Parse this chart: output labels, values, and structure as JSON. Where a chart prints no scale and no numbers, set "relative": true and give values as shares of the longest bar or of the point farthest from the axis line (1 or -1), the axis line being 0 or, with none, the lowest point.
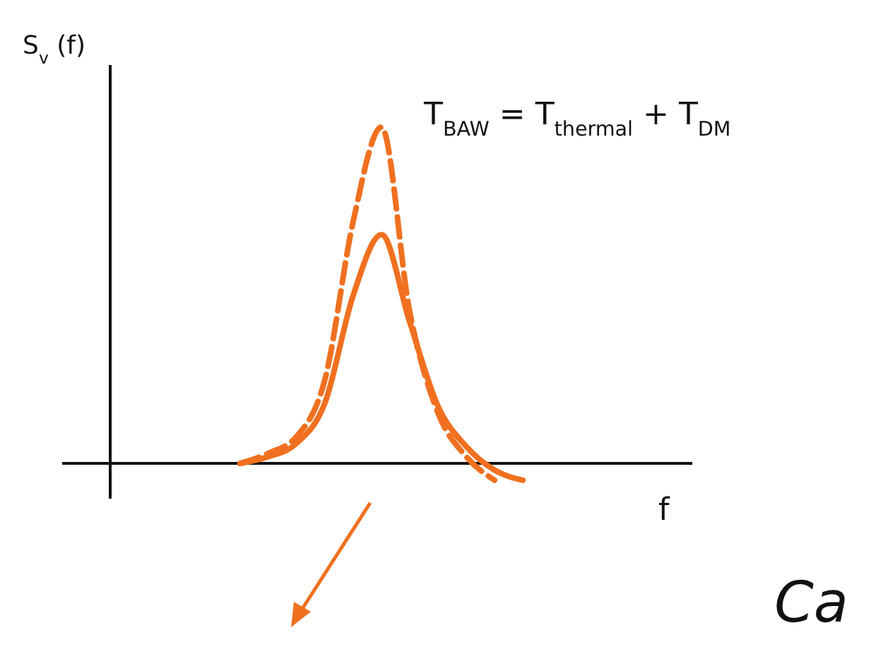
{
  "chart_data": {
    "type": "line",
    "relative": true,
    "ylabel": "S$_{v}$(f)",
    "xlabel": "f",
    "annotations": [
      "T$_{BAW}$ = T$_{thermal}$ + T$_{DM}$",
      "Ca"
    ],
    "categories": [
      null,
      null,
      null,
      null,
      null,
      null,
      null,
      null,
      null,
      null,
      null,
      null,
      null,
      null,
      null,
      null,
      null,
      null,
      null,
      null,
      null,
      null,
      null
    ],
    "series": [
      {
        "color": "#f07020",
        "line_style": "solid",
        "values": [
          null,
          null,
          null,
          null,
          null,
          null,
          0,
          0.02,
          0.06,
          0.18,
          0.5,
          0.68,
          0.42,
          0.17,
          0.05,
          -0.02,
          -0.05,
          null,
          null,
          null,
          null,
          null,
          null
        ]
      },
      {
        "color": "#f07020",
        "line_style": "dashed",
        "values": [
          null,
          null,
          null,
          null,
          null,
          null,
          0,
          0.03,
          0.08,
          0.25,
          0.72,
          1,
          0.45,
          0.15,
          0.02,
          -0.05,
          null,
          null,
          null,
          null,
          null,
          null,
          null
        ]
      }
    ],
    "grid": false
  }
}
